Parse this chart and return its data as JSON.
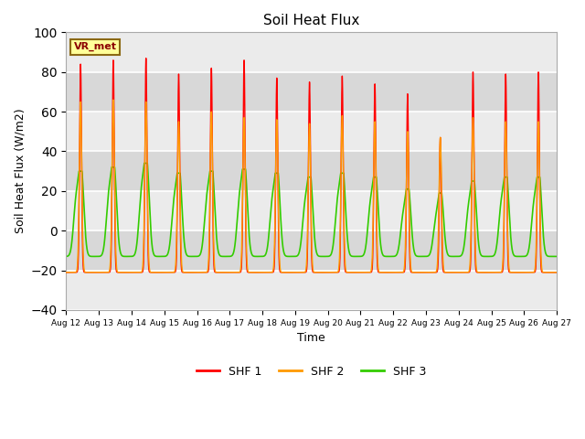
{
  "title": "Soil Heat Flux",
  "xlabel": "Time",
  "ylabel": "Soil Heat Flux (W/m2)",
  "ylim": [
    -40,
    100
  ],
  "yticks": [
    -40,
    -20,
    0,
    20,
    40,
    60,
    80,
    100
  ],
  "colors": {
    "SHF 1": "#ff0000",
    "SHF 2": "#ff9900",
    "SHF 3": "#33cc00"
  },
  "legend_label": "VR_met",
  "background_color": "#ffffff",
  "plot_bg_light": "#ebebeb",
  "plot_bg_dark": "#d8d8d8",
  "grid_color": "#ffffff",
  "n_days": 15,
  "start_day": 12,
  "peaks_shf1": [
    84,
    86,
    87,
    79,
    82,
    86,
    77,
    75,
    78,
    74,
    69,
    47,
    80,
    79,
    80
  ],
  "peaks_shf2": [
    65,
    66,
    65,
    55,
    60,
    57,
    56,
    54,
    58,
    55,
    50,
    47,
    57,
    55,
    55
  ],
  "peaks_shf3": [
    30,
    32,
    34,
    29,
    30,
    31,
    29,
    27,
    29,
    27,
    21,
    19,
    25,
    27,
    27
  ],
  "min_shf1": -21,
  "min_shf2": -21,
  "min_shf3": -13,
  "samples_per_day": 288
}
